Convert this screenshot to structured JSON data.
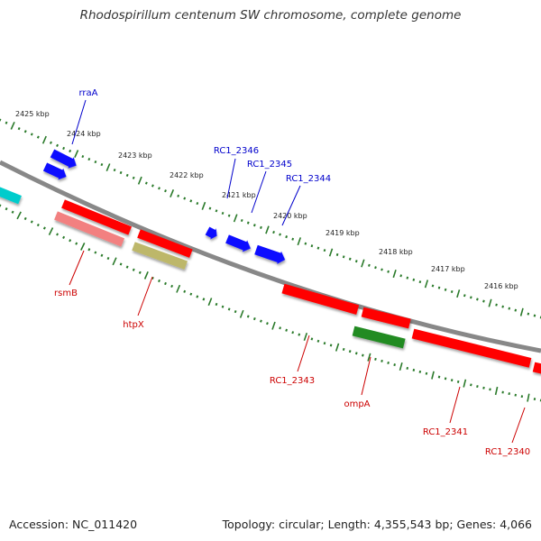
{
  "title": "Rhodospirillum centenum SW chromosome, complete genome",
  "footer": {
    "accession": "Accession: NC_011420",
    "stats": "Topology: circular; Length: 4,355,543 bp; Genes: 4,066"
  },
  "colors": {
    "backbone": "#888888",
    "ticks": "#2a7a2a",
    "forward_label": "#0000cc",
    "reverse_label": "#cc0000",
    "blue": "#0a0aff",
    "red": "#ff0000",
    "pink": "#f28080",
    "olive": "#bdb76b",
    "green": "#228b22",
    "cyan": "#00cccc"
  },
  "scale": {
    "ticks": [
      {
        "label": "2425 kbp"
      },
      {
        "label": "2424 kbp"
      },
      {
        "label": "2423 kbp"
      },
      {
        "label": "2422 kbp"
      },
      {
        "label": "2421 kbp"
      },
      {
        "label": "2420 kbp"
      },
      {
        "label": "2419 kbp"
      },
      {
        "label": "2418 kbp"
      },
      {
        "label": "2417 kbp"
      },
      {
        "label": "2416 kbp"
      }
    ]
  },
  "features": {
    "forward": [
      {
        "name": "rraA",
        "color": "blue",
        "labeled": true
      },
      {
        "name": "",
        "color": "blue",
        "labeled": false
      },
      {
        "name": "RC1_2346",
        "color": "blue",
        "labeled": true
      },
      {
        "name": "RC1_2345",
        "color": "blue",
        "labeled": true
      },
      {
        "name": "RC1_2344",
        "color": "blue",
        "labeled": true
      }
    ],
    "reverse": [
      {
        "name": "",
        "color": "cyan",
        "labeled": false
      },
      {
        "name": "",
        "color": "red",
        "labeled": false
      },
      {
        "name": "rsmB",
        "color": "pink",
        "labeled": true
      },
      {
        "name": "",
        "color": "red",
        "labeled": false
      },
      {
        "name": "htpX",
        "color": "olive",
        "labeled": true
      },
      {
        "name": "RC1_2343",
        "color": "red",
        "labeled": true
      },
      {
        "name": "",
        "color": "red",
        "labeled": false
      },
      {
        "name": "ompA",
        "color": "green",
        "labeled": true
      },
      {
        "name": "RC1_2341",
        "color": "red",
        "labeled": true
      },
      {
        "name": "RC1_2340",
        "color": "red",
        "labeled": true
      }
    ]
  }
}
